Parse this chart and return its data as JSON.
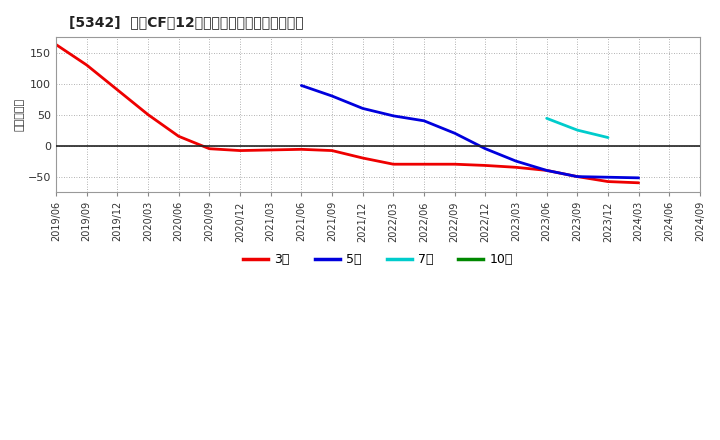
{
  "title": "[5342]  営業CFだ12か月移動合計の平均値の推移",
  "ylabel": "（百万円）",
  "background_color": "#ffffff",
  "plot_bg_color": "#ffffff",
  "grid_color": "#aaaaaa",
  "ylim": [
    -75,
    175
  ],
  "yticks": [
    -50,
    0,
    50,
    100,
    150
  ],
  "series": {
    "3year": {
      "color": "#ee0000",
      "label": "3年",
      "x": [
        0,
        3,
        6,
        9,
        12,
        15,
        18,
        21,
        24,
        27,
        30,
        33,
        36,
        39,
        42,
        45,
        48,
        51,
        54,
        57
      ],
      "y": [
        163,
        130,
        90,
        50,
        15,
        -5,
        -8,
        -7,
        -6,
        -8,
        -20,
        -30,
        -30,
        -30,
        -32,
        -35,
        -40,
        -50,
        -58,
        -60
      ]
    },
    "5year": {
      "color": "#0000dd",
      "label": "5年",
      "x": [
        24,
        27,
        30,
        33,
        36,
        39,
        42,
        45,
        48,
        51,
        54,
        57
      ],
      "y": [
        97,
        80,
        60,
        48,
        40,
        20,
        -5,
        -25,
        -40,
        -50,
        -51,
        -52
      ]
    },
    "7year": {
      "color": "#00cccc",
      "label": "7年",
      "x": [
        48,
        51,
        54
      ],
      "y": [
        44,
        25,
        13
      ]
    },
    "10year": {
      "color": "#008800",
      "label": "10年",
      "x": [],
      "y": []
    }
  },
  "x_labels": [
    "2019/06",
    "2019/09",
    "2019/12",
    "2020/03",
    "2020/06",
    "2020/09",
    "2020/12",
    "2021/03",
    "2021/06",
    "2021/09",
    "2021/12",
    "2022/03",
    "2022/06",
    "2022/09",
    "2022/12",
    "2023/03",
    "2023/06",
    "2023/09",
    "2023/12",
    "2024/03",
    "2024/06",
    "2024/09"
  ]
}
